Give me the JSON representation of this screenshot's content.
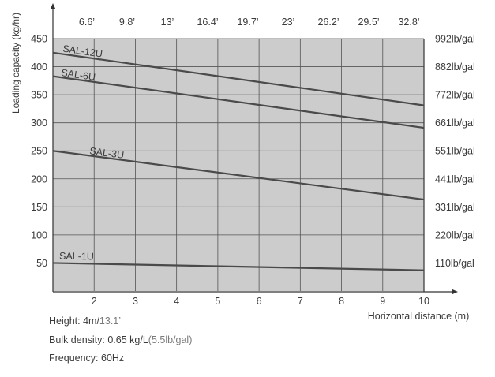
{
  "chart_data": {
    "type": "line",
    "title": "",
    "ylabel": "Loading capacity (kg/hr)",
    "xlabel": "Horizontal distance (m)",
    "xlim": [
      1,
      10
    ],
    "ylim": [
      0,
      450
    ],
    "x_ticks": [
      "2",
      "3",
      "4",
      "5",
      "6",
      "7",
      "8",
      "9",
      "10"
    ],
    "top_ticks": [
      "6.6’",
      "9.8’",
      "13’",
      "16.4’",
      "19.7’",
      "23’",
      "26.2’",
      "29.5’",
      "32.8’"
    ],
    "y_ticks": [
      "50",
      "100",
      "150",
      "200",
      "250",
      "300",
      "350",
      "400",
      "450"
    ],
    "right_ticks": [
      "110lb/gal",
      "220lb/gal",
      "331lb/gal",
      "441lb/gal",
      "551lb/gal",
      "661lb/gal",
      "772lb/gal",
      "882lb/gal",
      "992lb/gal"
    ],
    "grid": true,
    "plot_background": "#cccccc",
    "line_color": "#4a4a4a",
    "series": [
      {
        "name": "SAL-12U",
        "x": [
          1,
          10
        ],
        "y": [
          425,
          331
        ]
      },
      {
        "name": "SAL-6U",
        "x": [
          1,
          10
        ],
        "y": [
          383,
          291
        ]
      },
      {
        "name": "SAL-3U",
        "x": [
          1,
          10
        ],
        "y": [
          250,
          163
        ]
      },
      {
        "name": "SAL-1U",
        "x": [
          1,
          10
        ],
        "y": [
          50,
          37
        ]
      }
    ]
  },
  "notes": {
    "height_label": "Height: 4m/",
    "height_ft": "13.1’",
    "density_label": "Bulk density: 0.65 kg/L",
    "density_lb": "(5.5lb/gal)",
    "frequency": "Frequency: 60Hz"
  }
}
